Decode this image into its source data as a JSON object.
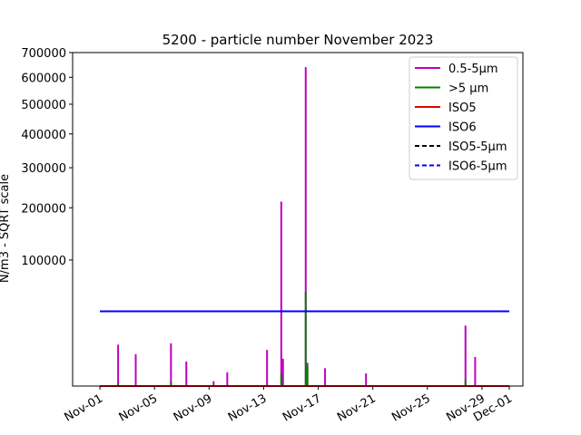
{
  "chart_data": {
    "type": "line",
    "title": "5200 - particle number November 2023",
    "ylabel": "N/m3 - SQRT scale",
    "xlabel": "",
    "yscale": "sqrt",
    "ylim": [
      0,
      700000
    ],
    "xlim": [
      "2023-10-30",
      "2023-12-02"
    ],
    "y_ticks": [
      100000,
      200000,
      300000,
      400000,
      500000,
      600000,
      700000
    ],
    "y_tick_labels": [
      "100000",
      "200000",
      "300000",
      "400000",
      "500000",
      "600000",
      "700000"
    ],
    "x_ticks": [
      "2023-11-01",
      "2023-11-05",
      "2023-11-09",
      "2023-11-13",
      "2023-11-17",
      "2023-11-21",
      "2023-11-25",
      "2023-11-29",
      "2023-12-01"
    ],
    "x_tick_labels": [
      "Nov-01",
      "Nov-05",
      "Nov-09",
      "Nov-13",
      "Nov-17",
      "Nov-21",
      "Nov-25",
      "Nov-29",
      "Dec-01"
    ],
    "legend_position": "upper-right",
    "grid": false,
    "series": [
      {
        "name": "0.5-5µm",
        "color": "#bf00bf",
        "style": "solid",
        "kind": "spikes",
        "points": [
          {
            "x": "2023-11-02 08:00",
            "y": 10800
          },
          {
            "x": "2023-11-03 15:00",
            "y": 6400
          },
          {
            "x": "2023-11-06 05:00",
            "y": 11500
          },
          {
            "x": "2023-11-07 08:00",
            "y": 3800
          },
          {
            "x": "2023-11-09 08:00",
            "y": 150
          },
          {
            "x": "2023-11-10 08:00",
            "y": 1200
          },
          {
            "x": "2023-11-13 06:00",
            "y": 8200
          },
          {
            "x": "2023-11-14 07:00",
            "y": 214000
          },
          {
            "x": "2023-11-14 10:00",
            "y": 4700
          },
          {
            "x": "2023-11-16 02:00",
            "y": 640000
          },
          {
            "x": "2023-11-16 05:00",
            "y": 3400
          },
          {
            "x": "2023-11-17 12:00",
            "y": 2000
          },
          {
            "x": "2023-11-20 12:00",
            "y": 1000
          },
          {
            "x": "2023-11-27 19:00",
            "y": 23000
          },
          {
            "x": "2023-11-28 12:00",
            "y": 5300
          }
        ]
      },
      {
        "name": ">5 µm",
        "color": "#008000",
        "style": "solid",
        "kind": "spikes",
        "points": [
          {
            "x": "2023-11-02 08:00",
            "y": 50
          },
          {
            "x": "2023-11-06 05:00",
            "y": 120
          },
          {
            "x": "2023-11-14 07:00",
            "y": 900
          },
          {
            "x": "2023-11-16 02:00",
            "y": 56000
          },
          {
            "x": "2023-11-16 05:00",
            "y": 2500
          },
          {
            "x": "2023-11-27 19:00",
            "y": 200
          }
        ]
      },
      {
        "name": "ISO5",
        "color": "#e00000",
        "style": "solid",
        "kind": "hline",
        "x_start": "2023-11-01",
        "x_end": "2023-12-01",
        "y": 0
      },
      {
        "name": "ISO6",
        "color": "#0000ff",
        "style": "solid",
        "kind": "hline",
        "x_start": "2023-11-01",
        "x_end": "2023-12-01",
        "y": 35200
      },
      {
        "name": "ISO5-5µm",
        "color": "#000000",
        "style": "dashed",
        "kind": "legend-only"
      },
      {
        "name": "ISO6-5µm",
        "color": "#0000ff",
        "style": "dashed",
        "kind": "legend-only"
      }
    ]
  }
}
